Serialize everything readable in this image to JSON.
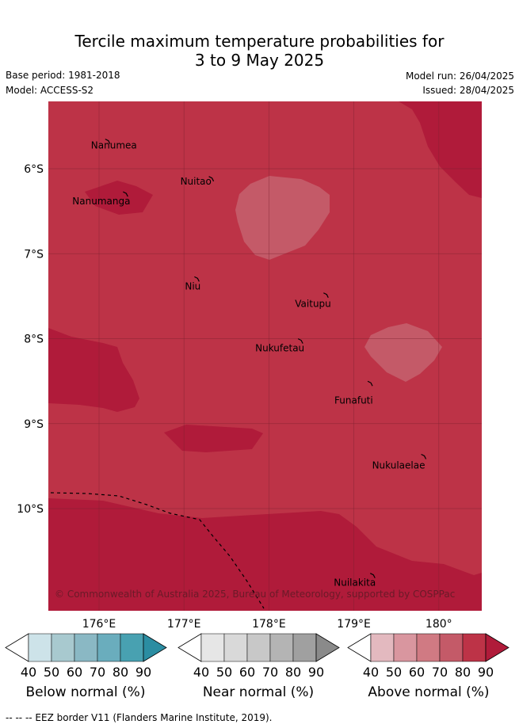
{
  "title_line1": "Tercile maximum temperature probabilities for",
  "title_line2": "3 to 9 May 2025",
  "base_period": "Base period: 1981-2018",
  "model": "Model: ACCESS-S2",
  "model_run": "Model run: 26/04/2025",
  "issued": "Issued: 28/04/2025",
  "copyright": "© Commonwealth of Australia 2025, Bureau of Meteorology, supported by COSPPac",
  "footer": "--  --  -- EEZ border V11 (Flanders Marine Institute, 2019).",
  "axes": {
    "lon_ticks": [
      "176°E",
      "177°E",
      "178°E",
      "179°E",
      "180°"
    ],
    "lat_ticks": [
      "6°S",
      "7°S",
      "8°S",
      "9°S",
      "10°S"
    ],
    "lon_range": [
      175.4,
      180.5
    ],
    "lat_range": [
      -11.2,
      -5.2
    ]
  },
  "places": [
    {
      "name": "Nanumea",
      "lon": 176.11,
      "lat": -5.67
    },
    {
      "name": "Nuitao",
      "lon": 177.33,
      "lat": -6.11
    },
    {
      "name": "Nanumanga",
      "lon": 176.32,
      "lat": -6.29
    },
    {
      "name": "Niu",
      "lon": 177.16,
      "lat": -7.29
    },
    {
      "name": "Vaitupu",
      "lon": 178.68,
      "lat": -7.48
    },
    {
      "name": "Nukufetau",
      "lon": 178.38,
      "lat": -8.02
    },
    {
      "name": "Funafuti",
      "lon": 179.2,
      "lat": -8.52
    },
    {
      "name": "Nukulaelae",
      "lon": 179.83,
      "lat": -9.38
    },
    {
      "name": "Nuilakita",
      "lon": 179.23,
      "lat": -10.78
    }
  ],
  "colorbars": [
    {
      "label": "Below normal (%)",
      "ticks": [
        "40",
        "50",
        "60",
        "70",
        "80",
        "90"
      ],
      "colors": [
        "#cde3e9",
        "#a8c9cf",
        "#8ab8c4",
        "#6aadbd",
        "#48a1b1",
        "#2b8da2"
      ]
    },
    {
      "label": "Near normal (%)",
      "ticks": [
        "40",
        "50",
        "60",
        "70",
        "80",
        "90"
      ],
      "colors": [
        "#e6e6e6",
        "#d9d9d9",
        "#c8c8c8",
        "#b4b4b4",
        "#a0a0a0",
        "#8a8a8a"
      ]
    },
    {
      "label": "Above normal (%)",
      "ticks": [
        "40",
        "50",
        "60",
        "70",
        "80",
        "90"
      ],
      "colors": [
        "#e3b9bf",
        "#d9969f",
        "#d07a83",
        "#c45a68",
        "#bd3347",
        "#b01b3a"
      ]
    }
  ],
  "colors": {
    "above_70_80": "#bd3347",
    "above_80_90": "#b01b3a",
    "above_60_70": "#c45a68",
    "gridline": "#7a2030"
  }
}
